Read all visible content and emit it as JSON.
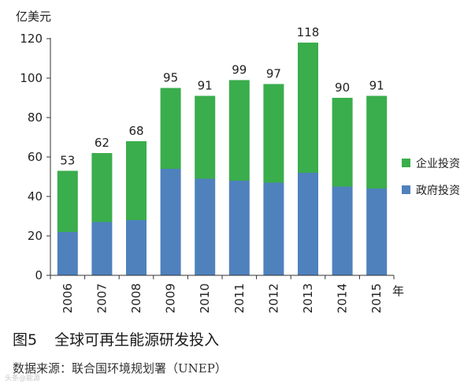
{
  "chart_data": {
    "type": "bar",
    "stacked": true,
    "unit": "亿美元",
    "x_unit": "年",
    "categories": [
      "2006",
      "2007",
      "2008",
      "2009",
      "2010",
      "2011",
      "2012",
      "2013",
      "2014",
      "2015"
    ],
    "series": [
      {
        "name": "政府投资",
        "color": "#4f81bd",
        "values": [
          22,
          27,
          28,
          54,
          49,
          48,
          47,
          52,
          45,
          44
        ]
      },
      {
        "name": "企业投资",
        "color": "#3aad4c",
        "values": [
          31,
          35,
          40,
          41,
          42,
          51,
          50,
          66,
          45,
          47
        ]
      }
    ],
    "totals": [
      53,
      62,
      68,
      95,
      91,
      99,
      97,
      118,
      90,
      91
    ],
    "ylim": [
      0,
      120
    ],
    "yticks": [
      0,
      20,
      40,
      60,
      80,
      100,
      120
    ],
    "legend_order": [
      "企业投资",
      "政府投资"
    ],
    "legend_position": "right",
    "grid": false
  },
  "figure": {
    "number": "图5",
    "title": "全球可再生能源研发投入"
  },
  "source": {
    "label": "数据来源",
    "colon": "：",
    "text": "联合国环境规划署（UNEP）"
  },
  "watermark": "头条@能源"
}
